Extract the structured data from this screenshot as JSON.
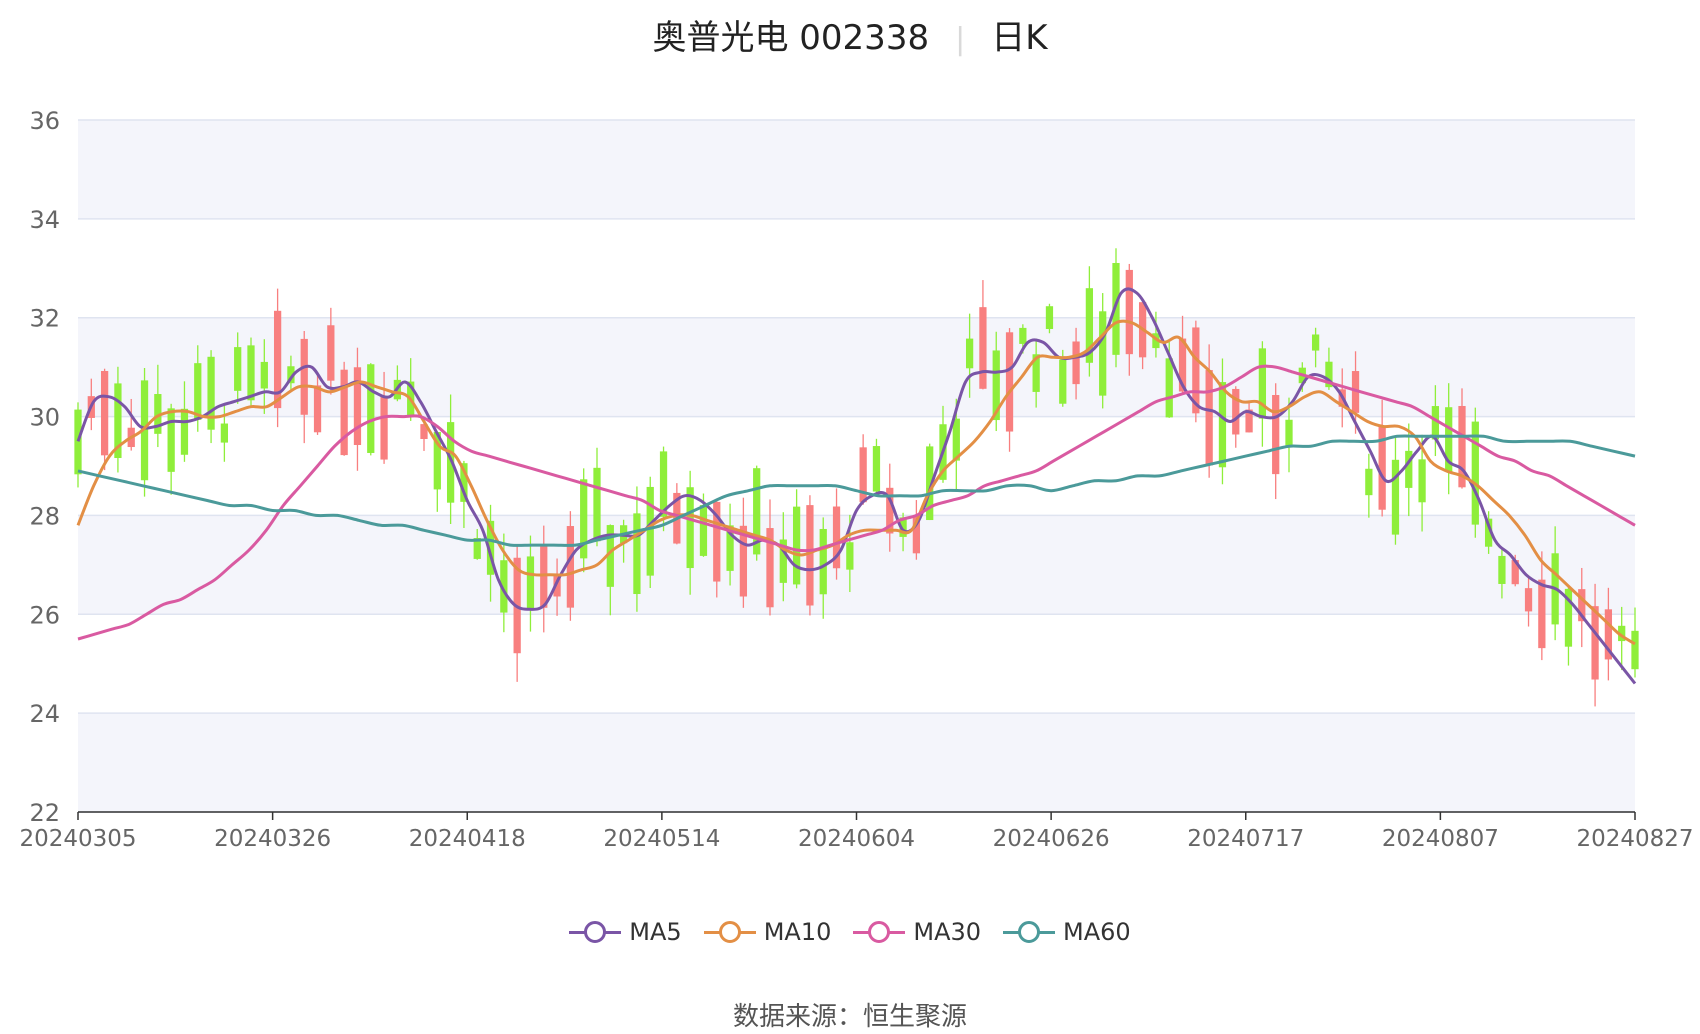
{
  "title": {
    "name": "奥普光电 002338",
    "period": "日K"
  },
  "source": {
    "label": "数据来源：",
    "provider": "恒生聚源"
  },
  "colors": {
    "up": "#f87f7f",
    "down": "#8fee3a",
    "ma5": "#7a55a6",
    "ma10": "#e38f45",
    "ma30": "#d95aa1",
    "ma60": "#4b9a9a",
    "grid": "#dfe4f0",
    "band": "#f4f5fb"
  },
  "chart_data": {
    "type": "candlestick",
    "ylim": [
      22,
      36
    ],
    "yticks": [
      22,
      24,
      26,
      28,
      30,
      32,
      34,
      36
    ],
    "xticks": [
      "20240305",
      "20240326",
      "20240418",
      "20240514",
      "20240604",
      "20240626",
      "20240717",
      "20240807",
      "20240827"
    ],
    "series": [
      {
        "name": "MA5",
        "color": "#7a55a6",
        "values": [
          29.5,
          30.3,
          30.4,
          30.2,
          29.8,
          29.8,
          29.9,
          29.9,
          30.0,
          30.2,
          30.3,
          30.4,
          30.5,
          30.5,
          30.9,
          31.0,
          30.6,
          30.6,
          30.7,
          30.5,
          30.4,
          30.7,
          30.3,
          29.7,
          29.1,
          28.3,
          27.7,
          26.7,
          26.2,
          26.1,
          26.2,
          26.8,
          27.3,
          27.5,
          27.6,
          27.6,
          27.6,
          27.9,
          28.2,
          28.4,
          28.3,
          28.0,
          27.6,
          27.4,
          27.5,
          27.4,
          27.0,
          26.9,
          27.0,
          27.3,
          28.1,
          28.4,
          28.4,
          27.7,
          27.9,
          28.8,
          29.7,
          30.7,
          30.9,
          30.9,
          31.0,
          31.5,
          31.5,
          31.2,
          31.2,
          31.3,
          31.7,
          32.5,
          32.5,
          32.0,
          31.3,
          30.6,
          30.2,
          30.1,
          29.9,
          30.1,
          30.0,
          30.0,
          30.3,
          30.8,
          30.8,
          30.5,
          29.9,
          29.3,
          28.7,
          28.9,
          29.3,
          29.6,
          29.1,
          28.9,
          28.3,
          27.5,
          27.2,
          26.8,
          26.6,
          26.5,
          26.2,
          25.8,
          25.4,
          25.0,
          24.6
        ]
      },
      {
        "name": "MA10",
        "color": "#e38f45",
        "values": [
          27.8,
          28.6,
          29.2,
          29.5,
          29.7,
          30.0,
          30.1,
          30.1,
          30.0,
          30.0,
          30.1,
          30.2,
          30.2,
          30.4,
          30.6,
          30.6,
          30.5,
          30.6,
          30.7,
          30.6,
          30.5,
          30.4,
          29.9,
          29.4,
          29.2,
          28.6,
          27.9,
          27.3,
          26.9,
          26.8,
          26.8,
          26.8,
          26.9,
          27.0,
          27.3,
          27.5,
          27.7,
          27.9,
          28.0,
          28.0,
          27.9,
          27.8,
          27.7,
          27.6,
          27.5,
          27.3,
          27.2,
          27.3,
          27.4,
          27.6,
          27.7,
          27.7,
          27.7,
          27.7,
          28.4,
          28.9,
          29.2,
          29.5,
          29.9,
          30.4,
          30.8,
          31.2,
          31.2,
          31.2,
          31.3,
          31.6,
          31.9,
          31.9,
          31.7,
          31.5,
          31.6,
          31.2,
          30.9,
          30.5,
          30.3,
          30.3,
          30.1,
          30.2,
          30.4,
          30.5,
          30.3,
          30.1,
          29.9,
          29.8,
          29.8,
          29.6,
          29.1,
          28.9,
          28.8,
          28.6,
          28.3,
          28.0,
          27.6,
          27.1,
          26.8,
          26.5,
          26.2,
          25.9,
          25.6,
          25.4
        ]
      },
      {
        "name": "MA30",
        "color": "#d95aa1",
        "values": [
          25.5,
          25.6,
          25.7,
          25.8,
          26.0,
          26.2,
          26.3,
          26.5,
          26.7,
          27.0,
          27.3,
          27.7,
          28.2,
          28.6,
          29.0,
          29.4,
          29.7,
          29.9,
          30.0,
          30.0,
          30.0,
          29.8,
          29.5,
          29.3,
          29.2,
          29.1,
          29.0,
          28.9,
          28.8,
          28.7,
          28.6,
          28.5,
          28.4,
          28.3,
          28.1,
          28.0,
          27.9,
          27.8,
          27.7,
          27.6,
          27.5,
          27.4,
          27.3,
          27.3,
          27.4,
          27.5,
          27.6,
          27.7,
          27.9,
          28.0,
          28.2,
          28.3,
          28.4,
          28.6,
          28.7,
          28.8,
          28.9,
          29.1,
          29.3,
          29.5,
          29.7,
          29.9,
          30.1,
          30.3,
          30.4,
          30.5,
          30.5,
          30.6,
          30.8,
          31.0,
          31.0,
          30.9,
          30.8,
          30.7,
          30.6,
          30.5,
          30.4,
          30.3,
          30.2,
          30.0,
          29.8,
          29.6,
          29.4,
          29.2,
          29.1,
          28.9,
          28.8,
          28.6,
          28.4,
          28.2,
          28.0,
          27.8
        ]
      },
      {
        "name": "MA60",
        "color": "#4b9a9a",
        "values": [
          28.9,
          28.8,
          28.7,
          28.6,
          28.5,
          28.4,
          28.3,
          28.2,
          28.2,
          28.1,
          28.1,
          28.0,
          28.0,
          27.9,
          27.8,
          27.8,
          27.7,
          27.6,
          27.5,
          27.5,
          27.4,
          27.4,
          27.4,
          27.4,
          27.5,
          27.6,
          27.7,
          27.8,
          28.0,
          28.2,
          28.4,
          28.5,
          28.6,
          28.6,
          28.6,
          28.6,
          28.5,
          28.4,
          28.4,
          28.4,
          28.5,
          28.5,
          28.5,
          28.6,
          28.6,
          28.5,
          28.6,
          28.7,
          28.7,
          28.8,
          28.8,
          28.9,
          29.0,
          29.1,
          29.2,
          29.3,
          29.4,
          29.4,
          29.5,
          29.5,
          29.5,
          29.6,
          29.6,
          29.6,
          29.6,
          29.6,
          29.5,
          29.5,
          29.5,
          29.5,
          29.4,
          29.3,
          29.2
        ]
      }
    ]
  }
}
